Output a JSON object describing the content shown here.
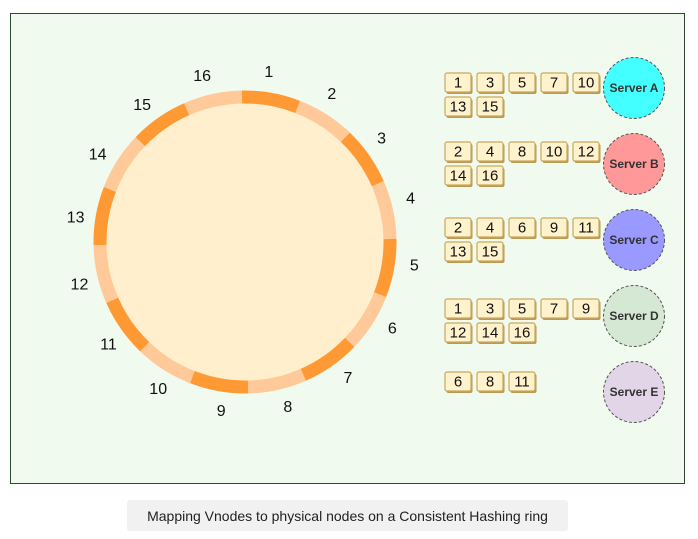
{
  "ring": {
    "segments": 16,
    "labels": [
      "1",
      "2",
      "3",
      "4",
      "5",
      "6",
      "7",
      "8",
      "9",
      "10",
      "11",
      "12",
      "13",
      "14",
      "15",
      "16"
    ],
    "highlighted": [
      1,
      3,
      5,
      7,
      9,
      11,
      13,
      15
    ],
    "colors": {
      "fill": "#ffefcc",
      "light_segment": "#ffc999",
      "dark_segment": "#ff9933"
    }
  },
  "servers": [
    {
      "name": "Server A",
      "color": "#44ffff",
      "vnodes": [
        "1",
        "3",
        "5",
        "7",
        "10",
        "13",
        "15"
      ]
    },
    {
      "name": "Server B",
      "color": "#ff9999",
      "vnodes": [
        "2",
        "4",
        "8",
        "10",
        "12",
        "14",
        "16"
      ]
    },
    {
      "name": "Server C",
      "color": "#9999ff",
      "vnodes": [
        "2",
        "4",
        "6",
        "9",
        "11",
        "13",
        "15"
      ]
    },
    {
      "name": "Server D",
      "color": "#d5e8d4",
      "vnodes": [
        "1",
        "3",
        "5",
        "7",
        "9",
        "12",
        "14",
        "16"
      ]
    },
    {
      "name": "Server E",
      "color": "#e1d5e7",
      "vnodes": [
        "6",
        "8",
        "11"
      ]
    }
  ],
  "canvas": {
    "background": "#f0faee",
    "border": "#2d4a2d"
  },
  "caption": "Mapping Vnodes to physical nodes on a Consistent Hashing ring"
}
